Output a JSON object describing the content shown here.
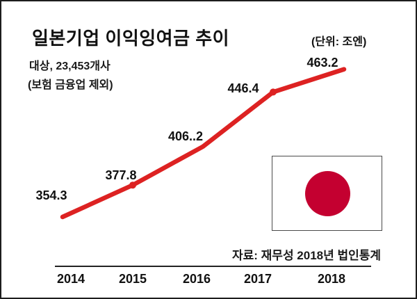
{
  "header": {
    "title": "일본기업 이익잉여금 추이",
    "unit_label": "(단위: 조엔)",
    "target_line": "대상, 23,453개사",
    "exclusion_line": "(보험 금융업 제외)"
  },
  "source_note": "자료: 재무성 2018년 법인통계",
  "chart_data": {
    "type": "line",
    "title": "일본기업 이익잉여금 추이",
    "subtitle": "대상, 23,453개사 (보험 금융업 제외)",
    "unit": "조엔",
    "categories": [
      "2014",
      "2015",
      "2016",
      "2017",
      "2018"
    ],
    "values": [
      354.3,
      377.8,
      406.2,
      446.4,
      463.2
    ],
    "value_labels": [
      "354.3",
      "377.8",
      "406..2",
      "446.4",
      "463.2"
    ],
    "series_name": "이익잉여금",
    "line_color": "#dd2222",
    "marker_indices": [
      1,
      3
    ],
    "xlabel": "",
    "ylabel": "",
    "ylim": [
      340,
      480
    ],
    "grid": false,
    "legend": "none",
    "source": "자료: 재무성 2018년 법인통계"
  },
  "flag_inset": {
    "name": "japan-flag",
    "circle_color": "#c40030",
    "background": "#ffffff"
  }
}
